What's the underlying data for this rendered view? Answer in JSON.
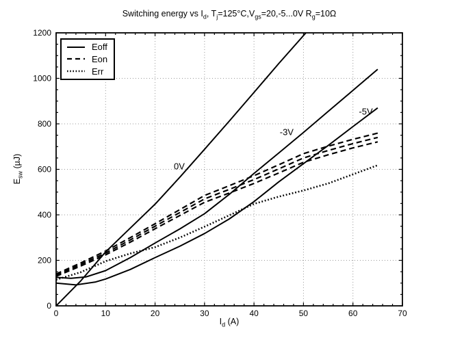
{
  "figure": {
    "title_segments": [
      {
        "t": "Switching energy vs I"
      },
      {
        "t": "d",
        "sub": true
      },
      {
        "t": ", T"
      },
      {
        "t": "j",
        "sub": true
      },
      {
        "t": "=125°C,V"
      },
      {
        "t": "gs",
        "sub": true
      },
      {
        "t": "=20,-5...0V R"
      },
      {
        "t": "g",
        "sub": true
      },
      {
        "t": "=10Ω"
      }
    ],
    "xlabel_segments": [
      {
        "t": "I"
      },
      {
        "t": "d",
        "sub": true
      },
      {
        "t": " (A)"
      }
    ],
    "ylabel_segments": [
      {
        "t": "E"
      },
      {
        "t": "sw",
        "sub": true
      },
      {
        "t": " (µJ)"
      }
    ]
  },
  "legend": {
    "items": [
      {
        "label": "Eoff",
        "style": "solid"
      },
      {
        "label": "Eon",
        "style": "dashed"
      },
      {
        "label": "Err",
        "style": "dotted"
      }
    ]
  },
  "chart_data": {
    "type": "line",
    "title": "Switching energy vs Id, Tj=125°C,Vgs=20,-5...0V Rg=10Ω",
    "xlabel": "Id (A)",
    "ylabel": "Esw (µJ)",
    "xlim": [
      0,
      70
    ],
    "ylim": [
      0,
      1200
    ],
    "x_ticks": [
      0,
      10,
      20,
      30,
      40,
      50,
      60,
      70
    ],
    "y_ticks": [
      0,
      200,
      400,
      600,
      800,
      1000,
      1200
    ],
    "x_minor_step": 2,
    "y_minor_step": 50,
    "grid": "dotted at major ticks",
    "legend_position": "upper-left",
    "annotations": [
      {
        "text": "0V",
        "x": 26,
        "y": 613
      },
      {
        "text": "-3V",
        "x": 48,
        "y": 765
      },
      {
        "text": "-5V",
        "x": 64,
        "y": 854
      }
    ],
    "series": [
      {
        "name": "Eoff 0V",
        "group": "Eoff",
        "label": "0V",
        "style": "solid",
        "points": [
          [
            0,
            0
          ],
          [
            5,
            110
          ],
          [
            10,
            237
          ],
          [
            15,
            342
          ],
          [
            20,
            447
          ],
          [
            25,
            565
          ],
          [
            30,
            688
          ],
          [
            35,
            812
          ],
          [
            40,
            938
          ],
          [
            45,
            1065
          ],
          [
            50.5,
            1200
          ]
        ]
      },
      {
        "name": "Eoff -3V",
        "group": "Eoff",
        "label": "-3V",
        "style": "solid",
        "points": [
          [
            0,
            125
          ],
          [
            3,
            121
          ],
          [
            6,
            127
          ],
          [
            10,
            155
          ],
          [
            15,
            212
          ],
          [
            20,
            276
          ],
          [
            25,
            338
          ],
          [
            30,
            405
          ],
          [
            35,
            490
          ],
          [
            40,
            582
          ],
          [
            45,
            672
          ],
          [
            50,
            762
          ],
          [
            55,
            855
          ],
          [
            60,
            947
          ],
          [
            65,
            1040
          ]
        ]
      },
      {
        "name": "Eoff -5V",
        "group": "Eoff",
        "label": "-5V",
        "style": "solid",
        "points": [
          [
            0,
            100
          ],
          [
            4,
            92
          ],
          [
            8,
            105
          ],
          [
            10,
            118
          ],
          [
            15,
            160
          ],
          [
            20,
            212
          ],
          [
            25,
            262
          ],
          [
            30,
            318
          ],
          [
            35,
            382
          ],
          [
            40,
            458
          ],
          [
            45,
            545
          ],
          [
            50,
            625
          ],
          [
            55,
            705
          ],
          [
            60,
            788
          ],
          [
            65,
            870
          ]
        ]
      },
      {
        "name": "Eon upper",
        "group": "Eon",
        "style": "dashed",
        "points": [
          [
            0,
            140
          ],
          [
            5,
            189
          ],
          [
            10,
            241
          ],
          [
            15,
            300
          ],
          [
            20,
            361
          ],
          [
            25,
            423
          ],
          [
            30,
            485
          ],
          [
            35,
            528
          ],
          [
            40,
            572
          ],
          [
            45,
            620
          ],
          [
            50,
            669
          ],
          [
            55,
            702
          ],
          [
            60,
            732
          ],
          [
            65,
            759
          ]
        ]
      },
      {
        "name": "Eon middle",
        "group": "Eon",
        "style": "dashed",
        "points": [
          [
            0,
            135
          ],
          [
            5,
            182
          ],
          [
            10,
            232
          ],
          [
            15,
            290
          ],
          [
            20,
            350
          ],
          [
            25,
            410
          ],
          [
            30,
            470
          ],
          [
            35,
            512
          ],
          [
            40,
            555
          ],
          [
            45,
            602
          ],
          [
            50,
            650
          ],
          [
            55,
            683
          ],
          [
            60,
            713
          ],
          [
            65,
            740
          ]
        ]
      },
      {
        "name": "Eon lower",
        "group": "Eon",
        "style": "dashed",
        "points": [
          [
            0,
            130
          ],
          [
            5,
            175
          ],
          [
            10,
            224
          ],
          [
            15,
            280
          ],
          [
            20,
            339
          ],
          [
            25,
            397
          ],
          [
            30,
            455
          ],
          [
            35,
            496
          ],
          [
            40,
            538
          ],
          [
            45,
            584
          ],
          [
            50,
            631
          ],
          [
            55,
            664
          ],
          [
            60,
            694
          ],
          [
            65,
            721
          ]
        ]
      },
      {
        "name": "Err",
        "group": "Err",
        "style": "dotted",
        "points": [
          [
            0,
            115
          ],
          [
            5,
            148
          ],
          [
            10,
            196
          ],
          [
            15,
            230
          ],
          [
            20,
            258
          ],
          [
            25,
            300
          ],
          [
            30,
            348
          ],
          [
            35,
            398
          ],
          [
            40,
            448
          ],
          [
            45,
            480
          ],
          [
            50,
            507
          ],
          [
            55,
            538
          ],
          [
            60,
            578
          ],
          [
            65,
            618
          ]
        ]
      }
    ]
  }
}
